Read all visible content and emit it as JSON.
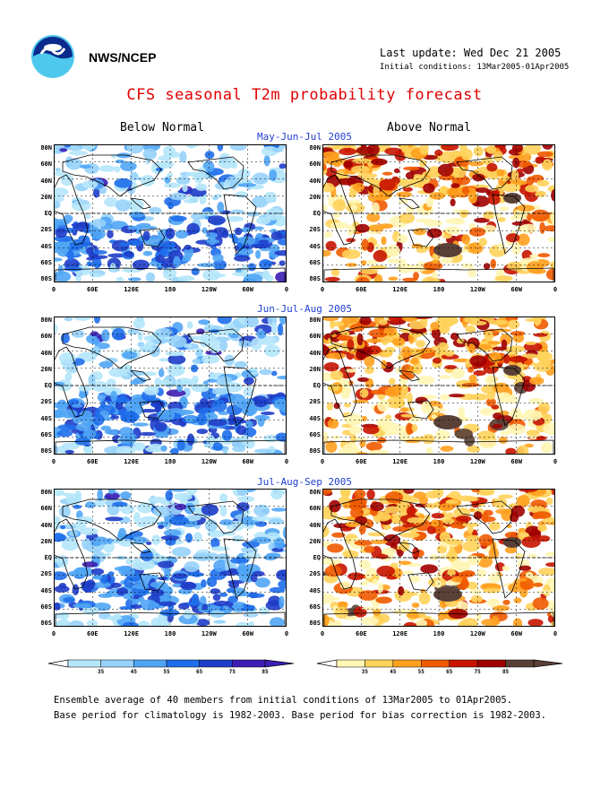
{
  "header": {
    "org": "NWS/NCEP",
    "last_update": "Last update: Wed Dec 21 2005",
    "initial_conditions": "Initial conditions: 13Mar2005-01Apr2005",
    "title": "CFS seasonal T2m probability forecast"
  },
  "columns": {
    "below": "Below Normal",
    "above": "Above Normal"
  },
  "periods": [
    "May-Jun-Jul 2005",
    "Jun-Jul-Aug 2005",
    "Jul-Aug-Sep 2005"
  ],
  "axes": {
    "lat_labels": [
      "80N",
      "60N",
      "40N",
      "20N",
      "EQ",
      "20S",
      "40S",
      "60S",
      "80S"
    ],
    "lon_labels": [
      "0",
      "60E",
      "120E",
      "180",
      "120W",
      "60W",
      "0"
    ]
  },
  "colorbars": {
    "below": {
      "labels": [
        "35",
        "45",
        "55",
        "65",
        "75",
        "85"
      ],
      "colors": [
        "#b4e6fa",
        "#96d2fa",
        "#50a5f5",
        "#1e6eeb",
        "#1e3cc8",
        "#3c1eb4"
      ]
    },
    "above": {
      "labels": [
        "35",
        "45",
        "55",
        "65",
        "75",
        "85"
      ],
      "colors": [
        "#fff5b4",
        "#ffd25a",
        "#ffa01e",
        "#f05a00",
        "#c81400",
        "#a00000",
        "#5a4137"
      ]
    }
  },
  "footer": {
    "line1": "Ensemble average of 40 members from initial conditions of 13Mar2005 to 01Apr2005.",
    "line2": "Base period for climatology is 1982-2003. Base period for bias correction is 1982-2003."
  },
  "colors": {
    "title": "#e00000",
    "period": "#1f3fd0"
  }
}
